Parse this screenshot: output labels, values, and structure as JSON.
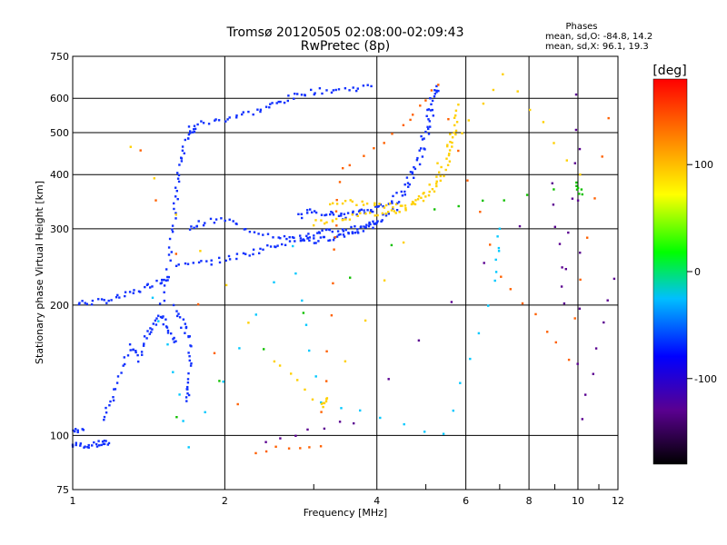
{
  "chart_data": {
    "type": "scatter",
    "title": "Tromsø 20120505 02:08:00-02:09:43",
    "subtitle": "RwPretec (8p)",
    "xlabel": "Frequency [MHz]",
    "ylabel": "Stationary phase Virtual Height [km]",
    "x_scale": "log",
    "y_scale": "log",
    "xlim": [
      1,
      12
    ],
    "ylim": [
      75,
      750
    ],
    "xticks": [
      1,
      2,
      4,
      6,
      8,
      10,
      12
    ],
    "xtick_labels": [
      "1",
      "2",
      "4",
      "6",
      "8",
      "10",
      "12"
    ],
    "yticks": [
      75,
      100,
      200,
      300,
      400,
      500,
      600,
      750
    ],
    "ytick_labels": [
      "75",
      "100",
      "200",
      "300",
      "400",
      "500",
      "600",
      "750"
    ],
    "grid": true,
    "phases": {
      "heading": "Phases",
      "o_line": "mean, sd,O: -84.8, 14.2",
      "x_line": "mean, sd,X: 96.1, 19.3"
    },
    "colorbar": {
      "label": "[deg]",
      "min": -180,
      "max": 180,
      "ticks": [
        100,
        0,
        -100
      ],
      "tick_labels": [
        "100",
        "0",
        "-100"
      ],
      "colors": [
        "#000000",
        "#5a0090",
        "#0000ff",
        "#00bfff",
        "#00ff00",
        "#ffff00",
        "#ff8000",
        "#ff0000"
      ]
    },
    "series": [
      {
        "name": "",
        "color": "#1030ff",
        "points": [
          [
            1.0,
            95
          ],
          [
            1.05,
            95
          ],
          [
            1.1,
            95
          ],
          [
            1.15,
            96
          ],
          [
            1.18,
            96
          ]
        ]
      },
      {
        "name": "",
        "color": "#1030ff",
        "points": [
          [
            1.0,
            103
          ],
          [
            1.05,
            103
          ]
        ]
      },
      {
        "name": "",
        "color": "#1030ff",
        "points": [
          [
            1.02,
            202
          ],
          [
            1.1,
            203
          ],
          [
            1.2,
            206
          ],
          [
            1.3,
            212
          ],
          [
            1.4,
            220
          ],
          [
            1.5,
            228
          ],
          [
            1.55,
            232
          ]
        ]
      },
      {
        "name": "",
        "color": "#1030ff",
        "points": [
          [
            1.15,
            110
          ],
          [
            1.2,
            120
          ],
          [
            1.25,
            140
          ],
          [
            1.3,
            160
          ],
          [
            1.35,
            150
          ],
          [
            1.4,
            170
          ],
          [
            1.45,
            180
          ],
          [
            1.5,
            190
          ],
          [
            1.55,
            175
          ],
          [
            1.6,
            165
          ]
        ]
      },
      {
        "name": "",
        "color": "#1030ff",
        "points": [
          [
            1.5,
            200
          ],
          [
            1.55,
            250
          ],
          [
            1.58,
            300
          ],
          [
            1.6,
            350
          ],
          [
            1.62,
            400
          ],
          [
            1.65,
            450
          ],
          [
            1.7,
            500
          ],
          [
            1.75,
            510
          ]
        ]
      },
      {
        "name": "",
        "color": "#1030ff",
        "points": [
          [
            1.6,
            200
          ],
          [
            1.65,
            180
          ],
          [
            1.7,
            170
          ],
          [
            1.72,
            150
          ],
          [
            1.7,
            130
          ],
          [
            1.68,
            120
          ]
        ]
      },
      {
        "name": "",
        "color": "#1030ff",
        "points": [
          [
            1.7,
            520
          ],
          [
            1.9,
            530
          ],
          [
            2.1,
            545
          ],
          [
            2.3,
            560
          ],
          [
            2.5,
            580
          ],
          [
            2.7,
            600
          ],
          [
            2.9,
            620
          ],
          [
            3.2,
            625
          ],
          [
            3.5,
            630
          ],
          [
            3.9,
            640
          ]
        ]
      },
      {
        "name": "",
        "color": "#1030ff",
        "points": [
          [
            1.7,
            300
          ],
          [
            1.8,
            310
          ],
          [
            2.0,
            315
          ],
          [
            2.2,
            300
          ],
          [
            2.5,
            290
          ],
          [
            2.8,
            285
          ],
          [
            3.0,
            285
          ]
        ]
      },
      {
        "name": "",
        "color": "#1030ff",
        "points": [
          [
            1.6,
            245
          ],
          [
            1.8,
            250
          ],
          [
            2.0,
            255
          ],
          [
            2.2,
            262
          ],
          [
            2.4,
            270
          ],
          [
            2.6,
            278
          ],
          [
            2.8,
            285
          ],
          [
            3.0,
            290
          ],
          [
            3.2,
            295
          ],
          [
            3.5,
            300
          ],
          [
            3.8,
            305
          ],
          [
            4.0,
            310
          ]
        ]
      },
      {
        "name": "",
        "color": "#1030ff",
        "points": [
          [
            3.0,
            280
          ],
          [
            3.2,
            285
          ],
          [
            3.4,
            290
          ],
          [
            3.6,
            295
          ],
          [
            3.8,
            300
          ],
          [
            4.0,
            310
          ],
          [
            4.3,
            330
          ],
          [
            4.6,
            370
          ],
          [
            4.9,
            440
          ],
          [
            5.1,
            520
          ],
          [
            5.2,
            600
          ],
          [
            5.25,
            640
          ]
        ]
      },
      {
        "name": "",
        "color": "#1030ff",
        "points": [
          [
            2.8,
            320
          ],
          [
            3.0,
            330
          ],
          [
            3.2,
            325
          ],
          [
            3.4,
            320
          ],
          [
            3.6,
            325
          ],
          [
            3.8,
            330
          ],
          [
            4.0,
            335
          ],
          [
            4.3,
            350
          ],
          [
            4.6,
            380
          ],
          [
            4.8,
            440
          ],
          [
            5.0,
            520
          ],
          [
            5.1,
            600
          ]
        ]
      },
      {
        "name": "",
        "color": "#ffd000",
        "points": [
          [
            3.0,
            310
          ],
          [
            3.3,
            315
          ],
          [
            3.6,
            320
          ],
          [
            4.0,
            325
          ],
          [
            4.4,
            330
          ],
          [
            4.8,
            345
          ],
          [
            5.2,
            370
          ],
          [
            5.5,
            420
          ],
          [
            5.7,
            500
          ],
          [
            5.8,
            580
          ]
        ]
      },
      {
        "name": "",
        "color": "#ffd000",
        "points": [
          [
            3.2,
            340
          ],
          [
            3.6,
            345
          ],
          [
            4.0,
            340
          ],
          [
            4.4,
            338
          ],
          [
            4.8,
            350
          ],
          [
            5.2,
            380
          ],
          [
            5.5,
            440
          ],
          [
            5.7,
            520
          ]
        ]
      },
      {
        "name": "",
        "color": "#ff6000",
        "points": [
          [
            1.35,
            450
          ],
          [
            2.3,
            92
          ],
          [
            3.1,
            95
          ],
          [
            3.3,
            265
          ],
          [
            3.4,
            410
          ],
          [
            4.5,
            520
          ],
          [
            5.3,
            640
          ],
          [
            7.0,
            235
          ],
          [
            9.6,
            150
          ],
          [
            11.5,
            540
          ]
        ]
      },
      {
        "name": "",
        "color": "#00c8ff",
        "points": [
          [
            1.45,
            210
          ],
          [
            1.7,
            95
          ],
          [
            2.7,
            270
          ],
          [
            3.1,
            120
          ],
          [
            5.4,
            100
          ],
          [
            6.9,
            230
          ],
          [
            7.0,
            300
          ]
        ]
      },
      {
        "name": "",
        "color": "#ffd000",
        "points": [
          [
            1.3,
            470
          ],
          [
            2.5,
            150
          ],
          [
            3.1,
            118
          ],
          [
            3.2,
            122
          ],
          [
            5.3,
            430
          ],
          [
            7.1,
            680
          ],
          [
            10.1,
            400
          ]
        ]
      },
      {
        "name": "",
        "color": "#10c000",
        "points": [
          [
            1.6,
            110
          ],
          [
            5.2,
            330
          ],
          [
            9.9,
            380
          ],
          [
            10.2,
            360
          ]
        ]
      },
      {
        "name": "",
        "color": "#5a0090",
        "points": [
          [
            2.4,
            97
          ],
          [
            3.6,
            108
          ],
          [
            8.9,
            380
          ],
          [
            9.4,
            200
          ],
          [
            10.0,
            620
          ],
          [
            10.1,
            110
          ],
          [
            11.8,
            230
          ]
        ]
      }
    ]
  }
}
